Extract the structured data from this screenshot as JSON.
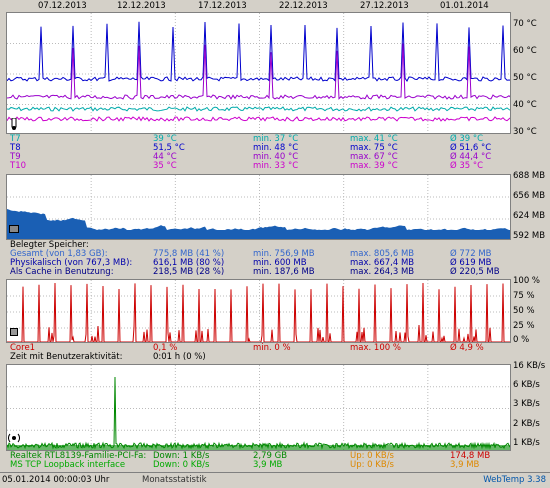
{
  "dates": [
    "07.12.2013",
    "12.12.2013",
    "17.12.2013",
    "22.12.2013",
    "27.12.2013",
    "01.01.2014"
  ],
  "temp": {
    "ticks": [
      "70 °C",
      "60 °C",
      "50 °C",
      "40 °C",
      "30 °C"
    ],
    "rows": [
      {
        "name": "T7",
        "cur": "39 °C",
        "min": "min. 37 °C",
        "max": "max. 41 °C",
        "avg": "Ø 39 °C",
        "color": "#00aaaa"
      },
      {
        "name": "T8",
        "cur": "51,5 °C",
        "min": "min. 48 °C",
        "max": "max. 75 °C",
        "avg": "Ø 51,6 °C",
        "color": "#0000cc"
      },
      {
        "name": "T9",
        "cur": "44 °C",
        "min": "min. 40 °C",
        "max": "max. 67 °C",
        "avg": "Ø 44,4 °C",
        "color": "#9900cc"
      },
      {
        "name": "T10",
        "cur": "35 °C",
        "min": "min. 33 °C",
        "max": "max. 39 °C",
        "avg": "Ø 35 °C",
        "color": "#cc00cc"
      }
    ]
  },
  "mem": {
    "ticks": [
      "688 MB",
      "656 MB",
      "624 MB",
      "592 MB"
    ],
    "heading": "Belegter Speicher:",
    "rows": [
      {
        "name": "Gesamt (von 1,83 GB):",
        "cur": "775,8 MB (41 %)",
        "min": "min. 756,9 MB",
        "max": "max. 805,6 MB",
        "avg": "Ø 772 MB",
        "color": "#3366cc"
      },
      {
        "name": "Physikalisch (von 767,3 MB):",
        "cur": "616,1 MB (80 %)",
        "min": "min. 600 MB",
        "max": "max. 667,4 MB",
        "avg": "Ø 619 MB",
        "color": "#0000aa"
      },
      {
        "name": "Als Cache in Benutzung:",
        "cur": "218,5 MB (28 %)",
        "min": "min. 187,6 MB",
        "max": "max. 264,3 MB",
        "avg": "Ø 220,5 MB",
        "color": "#000088"
      }
    ]
  },
  "cpu": {
    "ticks": [
      "100 %",
      "75 %",
      "50 %",
      "25 %",
      "0 %"
    ],
    "row": {
      "name": "Core1",
      "cur": "0,1 %",
      "min": "min. 0 %",
      "max": "max. 100 %",
      "avg": "Ø 4,9 %",
      "color": "#cc0000"
    },
    "activity_label": "Zeit mit Benutzeraktivität:",
    "activity_value": "0:01 h (0 %)"
  },
  "net": {
    "ticks": [
      "16 KB/s",
      "6 KB/s",
      "3 KB/s",
      "2 KB/s",
      "1 KB/s"
    ],
    "rows": [
      {
        "name": "Realtek RTL8139-Familie-PCI-Fa:",
        "down": "Down: 1 KB/s",
        "total": "2,79 GB",
        "up": "Up: 0 KB/s",
        "total2": "174,8 MB"
      },
      {
        "name": "MS TCP Loopback interface",
        "down": "Down: 0 KB/s",
        "total": "3,9 MB",
        "up": "Up: 0 KB/s",
        "total2": "3,9 MB"
      }
    ]
  },
  "status": {
    "datetime": "05.01.2014 00:00:03 Uhr",
    "mode": "Monatsstatistik",
    "app": "WebTemp 3.38"
  }
}
